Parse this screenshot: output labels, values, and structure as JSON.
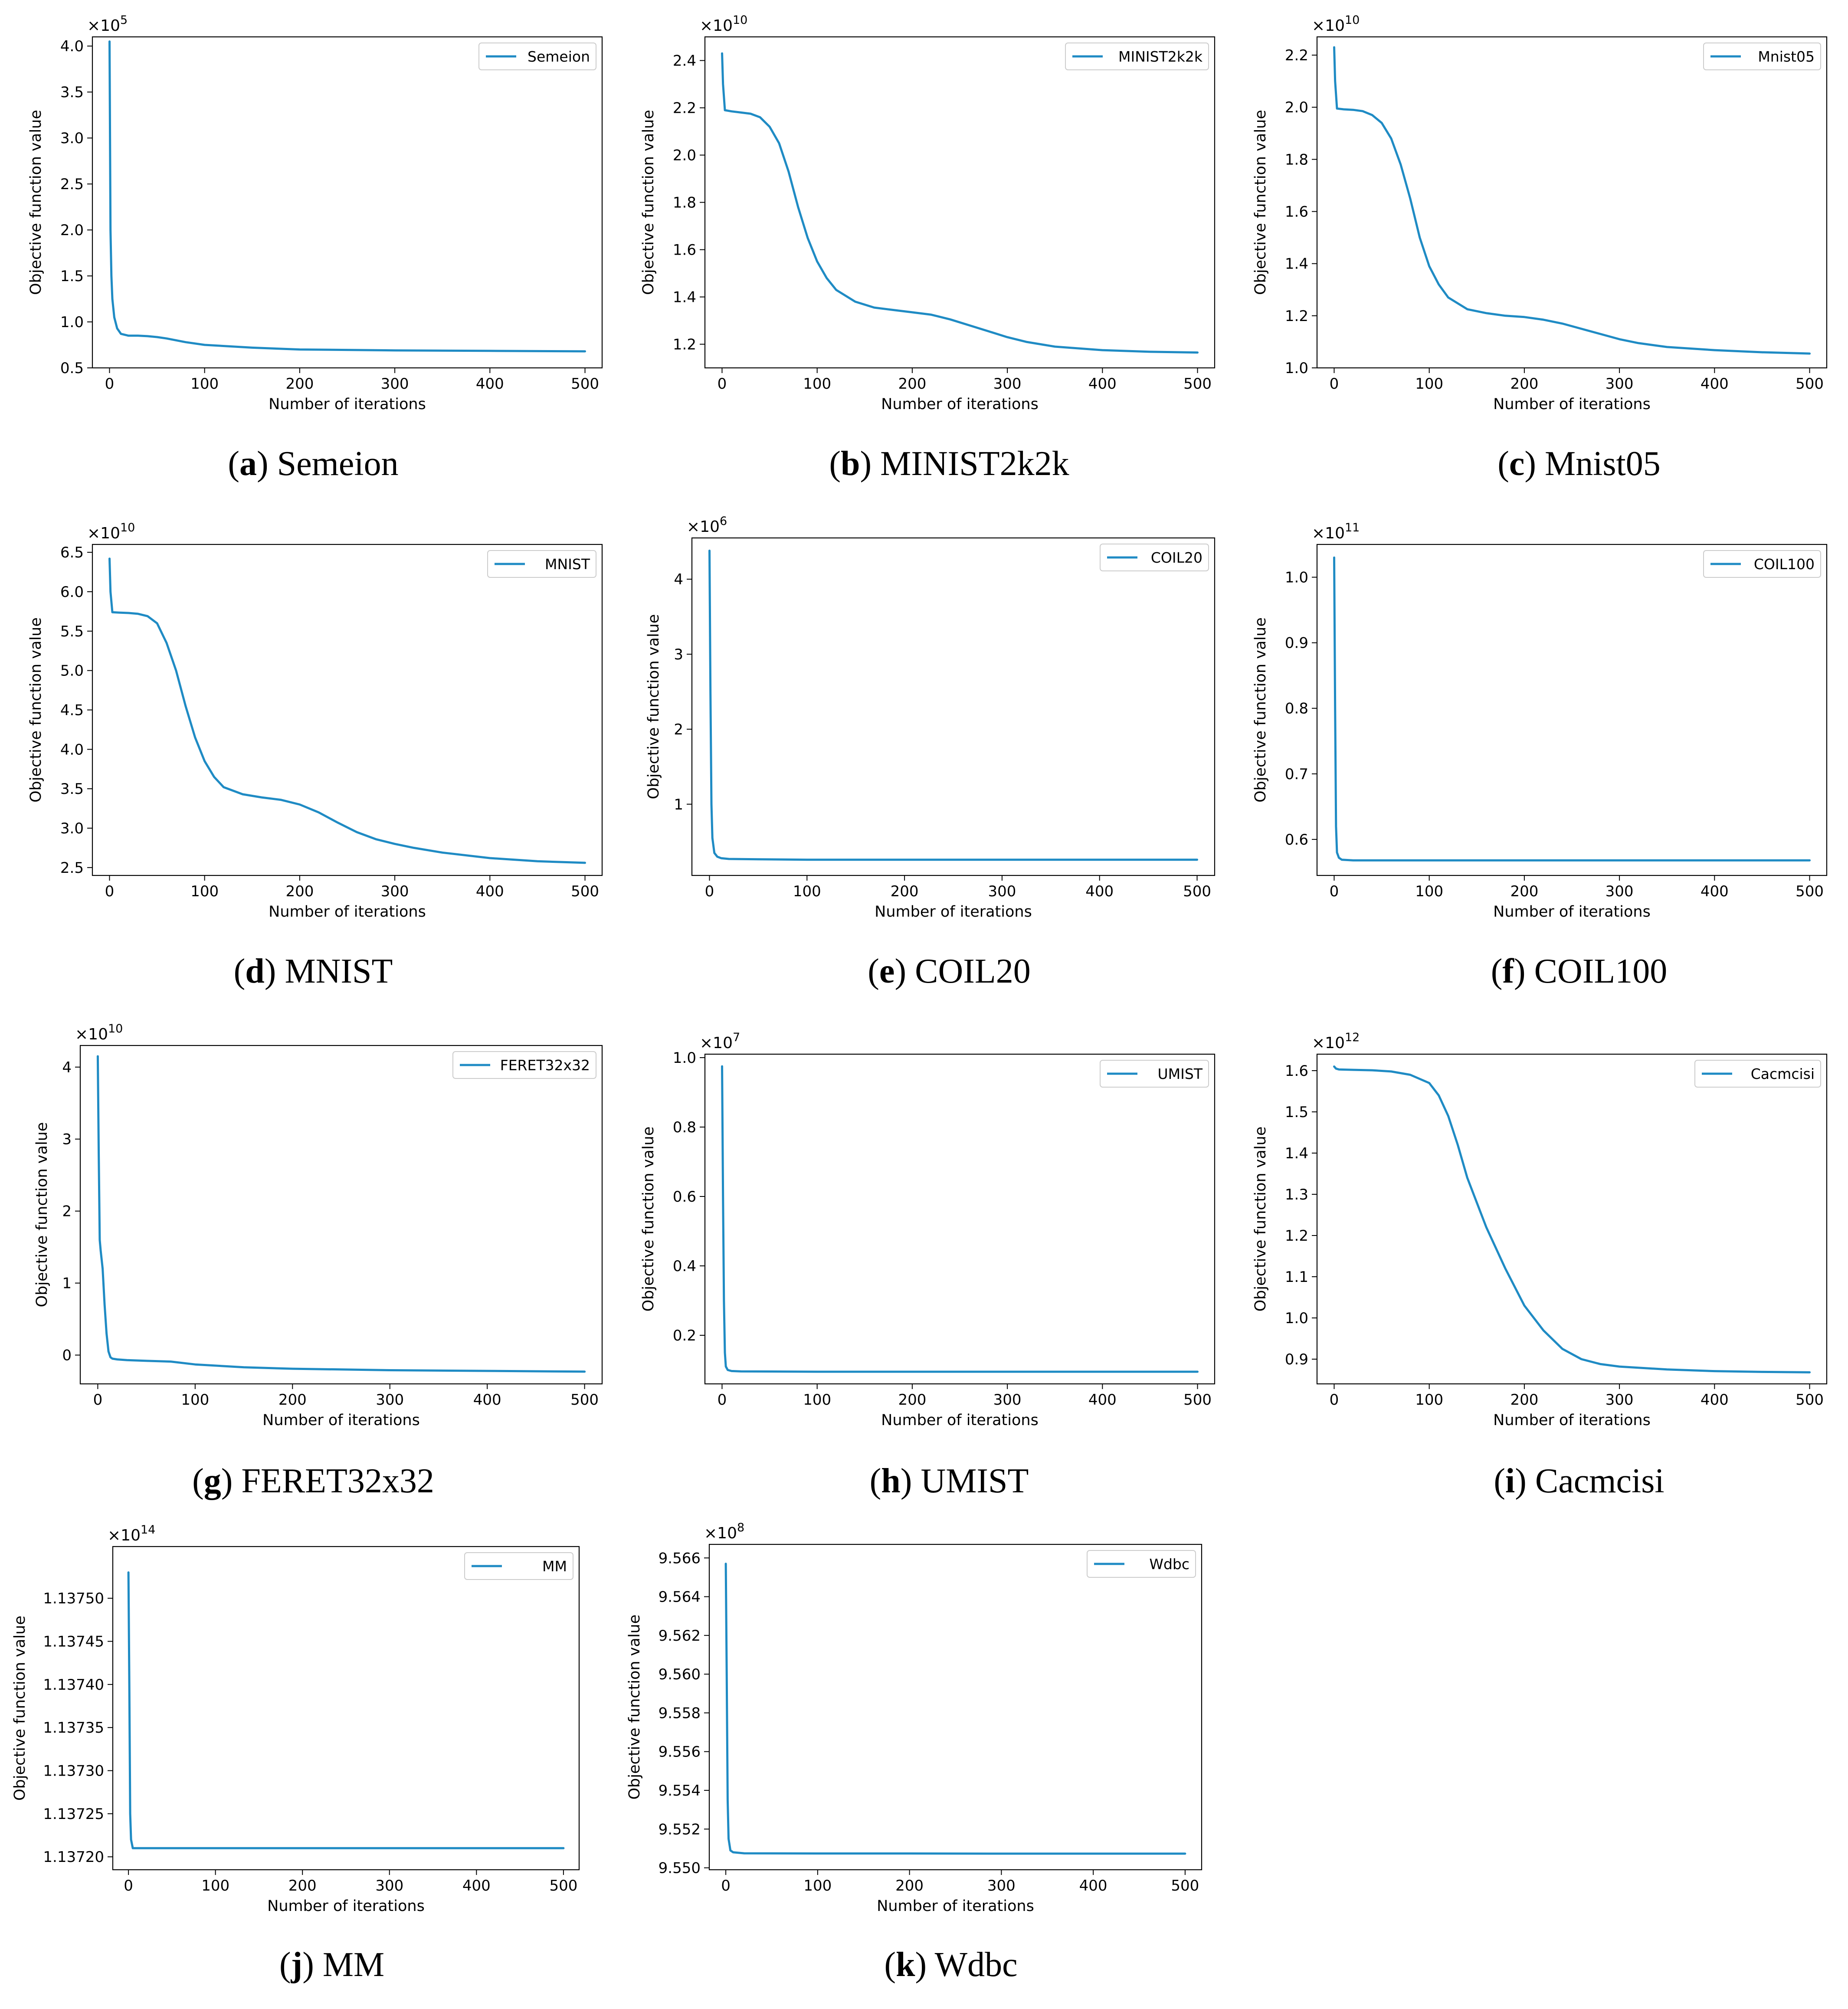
{
  "colors": {
    "series": "#1f8bc4",
    "axis": "#000000",
    "background": "#ffffff"
  },
  "chart_data": [
    {
      "id": "a",
      "caption_letter": "a",
      "caption_text": "Semeion",
      "type": "line",
      "series_name": "Semeion",
      "xlabel": "Number of iterations",
      "ylabel": "Objective function value",
      "multiplier": "×10",
      "exponent": "5",
      "xlim": [
        -18,
        518
      ],
      "ylim": [
        0.5,
        4.1
      ],
      "xticks": [
        0,
        100,
        200,
        300,
        400,
        500
      ],
      "yticks": [
        0.5,
        1.0,
        1.5,
        2.0,
        2.5,
        3.0,
        3.5,
        4.0
      ],
      "ytick_labels": [
        "0.5",
        "1.0",
        "1.5",
        "2.0",
        "2.5",
        "3.0",
        "3.5",
        "4.0"
      ],
      "x": [
        0,
        1,
        2,
        3,
        5,
        8,
        12,
        20,
        30,
        40,
        50,
        60,
        80,
        100,
        150,
        200,
        300,
        400,
        500
      ],
      "y": [
        4.05,
        2.0,
        1.5,
        1.25,
        1.05,
        0.93,
        0.87,
        0.85,
        0.85,
        0.845,
        0.835,
        0.82,
        0.78,
        0.75,
        0.72,
        0.7,
        0.69,
        0.685,
        0.68
      ]
    },
    {
      "id": "b",
      "caption_letter": "b",
      "caption_text": "MINIST2k2k",
      "type": "line",
      "series_name": "MINIST2k2k",
      "xlabel": "Number of iterations",
      "ylabel": "Objective function value",
      "multiplier": "×10",
      "exponent": "10",
      "xlim": [
        -18,
        518
      ],
      "ylim": [
        1.1,
        2.5
      ],
      "xticks": [
        0,
        100,
        200,
        300,
        400,
        500
      ],
      "yticks": [
        1.2,
        1.4,
        1.6,
        1.8,
        2.0,
        2.2,
        2.4
      ],
      "ytick_labels": [
        "1.2",
        "1.4",
        "1.6",
        "1.8",
        "2.0",
        "2.2",
        "2.4"
      ],
      "x": [
        0,
        1,
        3,
        10,
        20,
        30,
        40,
        50,
        60,
        70,
        80,
        90,
        100,
        110,
        120,
        140,
        160,
        180,
        200,
        220,
        240,
        260,
        280,
        300,
        320,
        350,
        400,
        450,
        500
      ],
      "y": [
        2.43,
        2.3,
        2.19,
        2.185,
        2.18,
        2.175,
        2.16,
        2.12,
        2.05,
        1.93,
        1.78,
        1.65,
        1.55,
        1.48,
        1.43,
        1.38,
        1.355,
        1.345,
        1.335,
        1.325,
        1.305,
        1.28,
        1.255,
        1.23,
        1.21,
        1.19,
        1.175,
        1.168,
        1.165
      ]
    },
    {
      "id": "c",
      "caption_letter": "c",
      "caption_text": "Mnist05",
      "type": "line",
      "series_name": "Mnist05",
      "xlabel": "Number of iterations",
      "ylabel": "Objective function value",
      "multiplier": "×10",
      "exponent": "10",
      "xlim": [
        -18,
        518
      ],
      "ylim": [
        1.0,
        2.27
      ],
      "xticks": [
        0,
        100,
        200,
        300,
        400,
        500
      ],
      "yticks": [
        1.0,
        1.2,
        1.4,
        1.6,
        1.8,
        2.0,
        2.2
      ],
      "ytick_labels": [
        "1.0",
        "1.2",
        "1.4",
        "1.6",
        "1.8",
        "2.0",
        "2.2"
      ],
      "x": [
        0,
        1,
        3,
        10,
        20,
        30,
        40,
        50,
        60,
        70,
        80,
        90,
        100,
        110,
        120,
        140,
        160,
        180,
        200,
        220,
        240,
        260,
        280,
        300,
        320,
        350,
        400,
        450,
        500
      ],
      "y": [
        2.23,
        2.1,
        1.995,
        1.992,
        1.99,
        1.985,
        1.97,
        1.94,
        1.88,
        1.78,
        1.65,
        1.5,
        1.39,
        1.32,
        1.27,
        1.225,
        1.21,
        1.2,
        1.195,
        1.185,
        1.17,
        1.15,
        1.13,
        1.11,
        1.095,
        1.08,
        1.068,
        1.06,
        1.055
      ]
    },
    {
      "id": "d",
      "caption_letter": "d",
      "caption_text": "MNIST",
      "type": "line",
      "series_name": "MNIST",
      "xlabel": "Number of iterations",
      "ylabel": "Objective function value",
      "multiplier": "×10",
      "exponent": "10",
      "xlim": [
        -18,
        518
      ],
      "ylim": [
        2.4,
        6.6
      ],
      "xticks": [
        0,
        100,
        200,
        300,
        400,
        500
      ],
      "yticks": [
        2.5,
        3.0,
        3.5,
        4.0,
        4.5,
        5.0,
        5.5,
        6.0,
        6.5
      ],
      "ytick_labels": [
        "2.5",
        "3.0",
        "3.5",
        "4.0",
        "4.5",
        "5.0",
        "5.5",
        "6.0",
        "6.5"
      ],
      "x": [
        0,
        1,
        3,
        10,
        20,
        30,
        40,
        50,
        60,
        70,
        80,
        90,
        100,
        110,
        120,
        140,
        160,
        180,
        200,
        220,
        240,
        260,
        280,
        300,
        320,
        350,
        400,
        450,
        500
      ],
      "y": [
        6.42,
        6.0,
        5.74,
        5.735,
        5.73,
        5.72,
        5.69,
        5.6,
        5.35,
        5.0,
        4.55,
        4.15,
        3.85,
        3.65,
        3.52,
        3.43,
        3.39,
        3.36,
        3.3,
        3.2,
        3.07,
        2.95,
        2.86,
        2.8,
        2.75,
        2.69,
        2.62,
        2.58,
        2.56
      ]
    },
    {
      "id": "e",
      "caption_letter": "e",
      "caption_text": "COIL20",
      "type": "line",
      "series_name": "COIL20",
      "xlabel": "Number of iterations",
      "ylabel": "Objective function value",
      "multiplier": "×10",
      "exponent": "6",
      "xlim": [
        -18,
        518
      ],
      "ylim": [
        0.05,
        4.55
      ],
      "xticks": [
        0,
        100,
        200,
        300,
        400,
        500
      ],
      "yticks": [
        1,
        2,
        3,
        4
      ],
      "ytick_labels": [
        "1",
        "2",
        "3",
        "4"
      ],
      "x": [
        0,
        1,
        2,
        3,
        5,
        8,
        12,
        20,
        50,
        100,
        200,
        300,
        400,
        500
      ],
      "y": [
        4.38,
        2.5,
        1.0,
        0.55,
        0.35,
        0.3,
        0.28,
        0.27,
        0.265,
        0.26,
        0.26,
        0.26,
        0.26,
        0.26
      ]
    },
    {
      "id": "f",
      "caption_letter": "f",
      "caption_text": "COIL100",
      "type": "line",
      "series_name": "COIL100",
      "xlabel": "Number of iterations",
      "ylabel": "Objective function value",
      "multiplier": "×10",
      "exponent": "11",
      "xlim": [
        -18,
        518
      ],
      "ylim": [
        0.545,
        1.05
      ],
      "xticks": [
        0,
        100,
        200,
        300,
        400,
        500
      ],
      "yticks": [
        0.6,
        0.7,
        0.8,
        0.9,
        1.0
      ],
      "ytick_labels": [
        "0.6",
        "0.7",
        "0.8",
        "0.9",
        "1.0"
      ],
      "x": [
        0,
        1,
        2,
        3,
        5,
        8,
        20,
        100,
        200,
        300,
        400,
        500
      ],
      "y": [
        1.03,
        0.8,
        0.62,
        0.58,
        0.572,
        0.569,
        0.568,
        0.568,
        0.568,
        0.568,
        0.568,
        0.568
      ]
    },
    {
      "id": "g",
      "caption_letter": "g",
      "caption_text": "FERET32x32",
      "type": "line",
      "series_name": "FERET32x32",
      "xlabel": "Number of iterations",
      "ylabel": "Objective function value",
      "multiplier": "×10",
      "exponent": "10",
      "xlim": [
        -18,
        518
      ],
      "ylim": [
        -0.4,
        4.3
      ],
      "xticks": [
        0,
        100,
        200,
        300,
        400,
        500
      ],
      "yticks": [
        0,
        1,
        2,
        3,
        4
      ],
      "ytick_labels": [
        "0",
        "1",
        "2",
        "3",
        "4"
      ],
      "x": [
        0,
        1,
        2,
        3,
        5,
        7,
        9,
        11,
        13,
        15,
        20,
        30,
        50,
        75,
        100,
        150,
        200,
        300,
        400,
        500
      ],
      "y": [
        4.15,
        2.8,
        1.6,
        1.45,
        1.2,
        0.7,
        0.3,
        0.05,
        -0.03,
        -0.05,
        -0.06,
        -0.07,
        -0.08,
        -0.09,
        -0.13,
        -0.17,
        -0.19,
        -0.21,
        -0.22,
        -0.23
      ]
    },
    {
      "id": "h",
      "caption_letter": "h",
      "caption_text": "UMIST",
      "type": "line",
      "series_name": "UMIST",
      "xlabel": "Number of iterations",
      "ylabel": "Objective function value",
      "multiplier": "×10",
      "exponent": "7",
      "xlim": [
        -18,
        518
      ],
      "ylim": [
        0.06,
        1.01
      ],
      "xticks": [
        0,
        100,
        200,
        300,
        400,
        500
      ],
      "yticks": [
        0.2,
        0.4,
        0.6,
        0.8,
        1.0
      ],
      "ytick_labels": [
        "0.2",
        "0.4",
        "0.6",
        "0.8",
        "1.0"
      ],
      "x": [
        0,
        1,
        2,
        3,
        4,
        6,
        10,
        20,
        100,
        200,
        300,
        400,
        500
      ],
      "y": [
        0.975,
        0.6,
        0.3,
        0.15,
        0.11,
        0.1,
        0.097,
        0.096,
        0.095,
        0.095,
        0.095,
        0.095,
        0.095
      ]
    },
    {
      "id": "i",
      "caption_letter": "i",
      "caption_text": "Cacmcisi",
      "type": "line",
      "series_name": "Cacmcisi",
      "xlabel": "Number of iterations",
      "ylabel": "Objective function value",
      "multiplier": "×10",
      "exponent": "12",
      "xlim": [
        -18,
        518
      ],
      "ylim": [
        0.84,
        1.64
      ],
      "xticks": [
        0,
        100,
        200,
        300,
        400,
        500
      ],
      "yticks": [
        0.9,
        1.0,
        1.1,
        1.2,
        1.3,
        1.4,
        1.5,
        1.6
      ],
      "ytick_labels": [
        "0.9",
        "1.0",
        "1.1",
        "1.2",
        "1.3",
        "1.4",
        "1.5",
        "1.6"
      ],
      "x": [
        0,
        2,
        5,
        20,
        40,
        60,
        80,
        100,
        110,
        120,
        130,
        140,
        160,
        180,
        200,
        220,
        240,
        260,
        280,
        300,
        350,
        400,
        450,
        500
      ],
      "y": [
        1.61,
        1.605,
        1.603,
        1.602,
        1.601,
        1.598,
        1.59,
        1.57,
        1.54,
        1.49,
        1.42,
        1.34,
        1.22,
        1.12,
        1.03,
        0.97,
        0.925,
        0.9,
        0.888,
        0.882,
        0.875,
        0.871,
        0.869,
        0.868
      ]
    },
    {
      "id": "j",
      "caption_letter": "j",
      "caption_text": "MM",
      "type": "line",
      "series_name": "MM",
      "xlabel": "Number of iterations",
      "ylabel": "Objective function value",
      "multiplier": "×10",
      "exponent": "14",
      "xlim": [
        -18,
        518
      ],
      "ylim": [
        1.137185,
        1.13756
      ],
      "xticks": [
        0,
        100,
        200,
        300,
        400,
        500
      ],
      "yticks": [
        1.1372,
        1.13725,
        1.1373,
        1.13735,
        1.1374,
        1.13745,
        1.1375
      ],
      "ytick_labels": [
        "1.13720",
        "1.13725",
        "1.13730",
        "1.13735",
        "1.13740",
        "1.13745",
        "1.13750"
      ],
      "x": [
        0,
        1,
        2,
        3,
        5,
        10,
        100,
        200,
        300,
        400,
        500
      ],
      "y": [
        1.13753,
        1.1374,
        1.13725,
        1.13722,
        1.13721,
        1.13721,
        1.13721,
        1.13721,
        1.13721,
        1.13721,
        1.13721
      ]
    },
    {
      "id": "k",
      "caption_letter": "k",
      "caption_text": "Wdbc",
      "type": "line",
      "series_name": "Wdbc",
      "xlabel": "Number of iterations",
      "ylabel": "Objective function value",
      "multiplier": "×10",
      "exponent": "8",
      "xlim": [
        -18,
        518
      ],
      "ylim": [
        9.5499,
        9.5667
      ],
      "xticks": [
        0,
        100,
        200,
        300,
        400,
        500
      ],
      "yticks": [
        9.55,
        9.552,
        9.554,
        9.556,
        9.558,
        9.56,
        9.562,
        9.564,
        9.566
      ],
      "ytick_labels": [
        "9.550",
        "9.552",
        "9.554",
        "9.556",
        "9.558",
        "9.560",
        "9.562",
        "9.564",
        "9.566"
      ],
      "x": [
        0,
        1,
        2,
        3,
        5,
        8,
        20,
        100,
        200,
        300,
        400,
        500
      ],
      "y": [
        9.5657,
        9.56,
        9.5535,
        9.5515,
        9.5509,
        9.5508,
        9.55075,
        9.55074,
        9.55074,
        9.55073,
        9.55073,
        9.55073
      ]
    }
  ]
}
